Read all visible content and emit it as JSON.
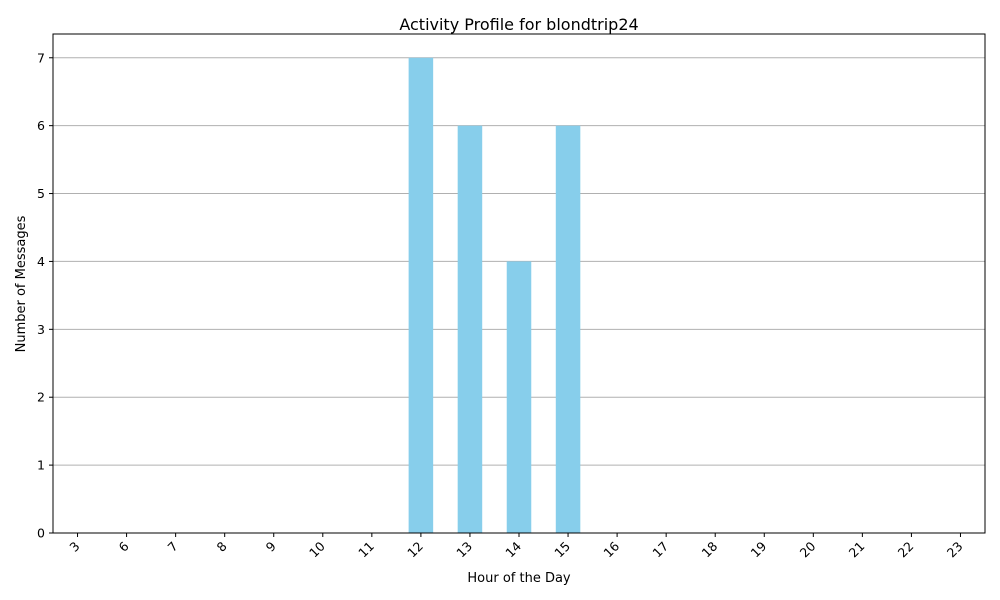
{
  "chart_data": {
    "type": "bar",
    "title": "Activity Profile for blondtrip24",
    "xlabel": "Hour of the Day",
    "ylabel": "Number of Messages",
    "categories": [
      "3",
      "6",
      "7",
      "8",
      "9",
      "10",
      "11",
      "12",
      "13",
      "14",
      "15",
      "16",
      "17",
      "18",
      "19",
      "20",
      "21",
      "22",
      "23"
    ],
    "values": [
      0,
      0,
      0,
      0,
      0,
      0,
      0,
      7,
      6,
      4,
      6,
      0,
      0,
      0,
      0,
      0,
      0,
      0,
      0
    ],
    "ylim": [
      0,
      7.35
    ],
    "yticks": [
      0,
      1,
      2,
      3,
      4,
      5,
      6,
      7
    ],
    "bar_color": "#87ceeb",
    "grid": "y-axis only",
    "x_tick_rotation": 45
  }
}
